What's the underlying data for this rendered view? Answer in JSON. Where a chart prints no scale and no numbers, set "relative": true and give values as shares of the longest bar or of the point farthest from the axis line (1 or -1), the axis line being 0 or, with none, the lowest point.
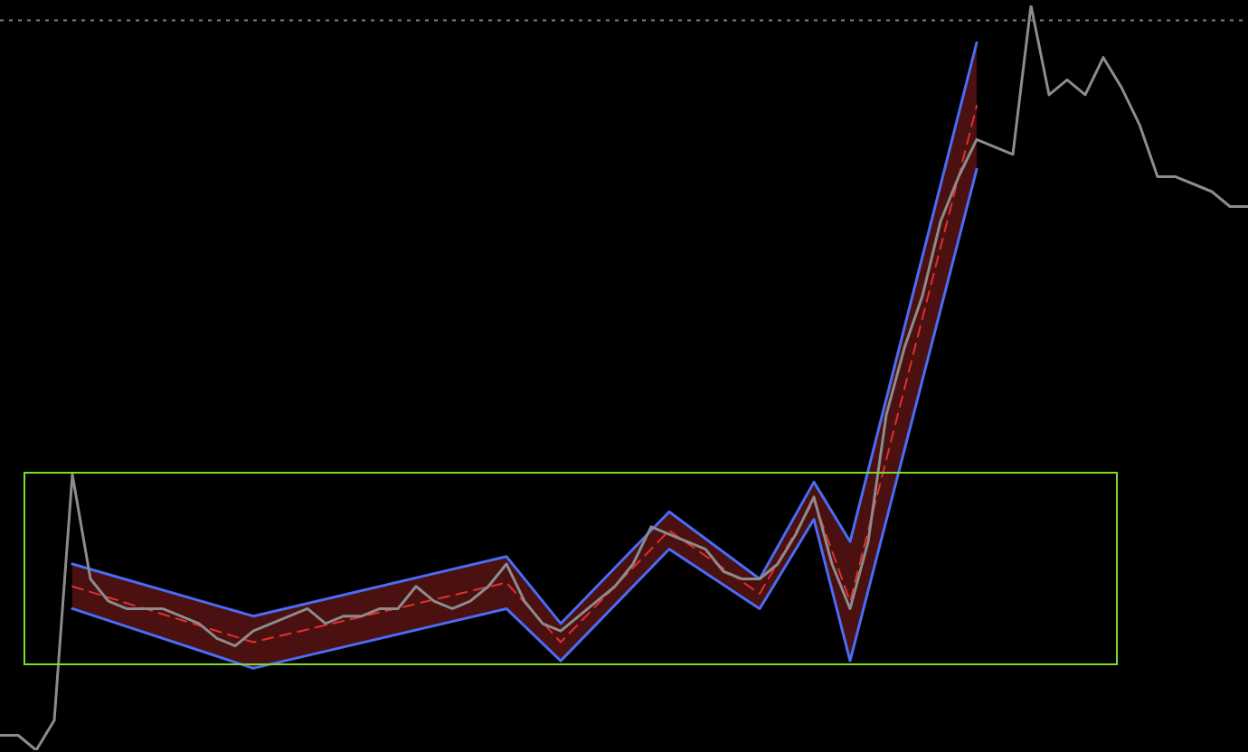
{
  "chart_data": {
    "type": "line",
    "relative": true,
    "tick_labels": false,
    "categories": [
      null,
      null,
      null,
      null,
      null,
      null,
      null,
      null,
      null,
      null,
      null,
      null,
      null,
      null,
      null,
      null,
      null,
      null,
      null,
      null,
      null,
      null,
      null,
      null,
      null,
      null,
      null,
      null,
      null,
      null,
      null,
      null,
      null,
      null,
      null,
      null,
      null,
      null,
      null,
      null,
      null,
      null,
      null,
      null,
      null,
      null,
      null,
      null,
      null,
      null,
      null,
      null,
      null,
      null,
      null,
      null,
      null,
      null,
      null,
      null,
      null,
      null,
      null,
      null,
      null,
      null,
      null,
      null,
      null,
      null
    ],
    "series": [
      {
        "color": "#8c8c8c",
        "values": [
          0.02,
          0.02,
          0.0,
          0.04,
          0.37,
          0.23,
          0.2,
          0.19,
          0.19,
          0.19,
          0.18,
          0.17,
          0.15,
          0.14,
          0.16,
          0.17,
          0.18,
          0.19,
          0.17,
          0.18,
          0.18,
          0.19,
          0.19,
          0.22,
          0.2,
          0.19,
          0.2,
          0.22,
          0.25,
          0.2,
          0.17,
          0.16,
          0.18,
          0.2,
          0.22,
          0.25,
          0.3,
          0.29,
          0.28,
          0.27,
          0.24,
          0.23,
          0.23,
          0.25,
          0.29,
          0.34,
          0.25,
          0.19,
          0.28,
          0.45,
          0.54,
          0.61,
          0.71,
          0.77,
          0.82,
          0.81,
          0.8,
          1.0,
          0.88,
          0.9,
          0.88,
          0.93,
          0.89,
          0.84,
          0.77,
          0.77,
          0.76,
          0.75,
          0.73,
          0.73
        ]
      },
      {
        "color": "#4a6cf7",
        "values": [
          null,
          null,
          null,
          null,
          0.25,
          null,
          null,
          null,
          null,
          null,
          null,
          null,
          null,
          null,
          0.18,
          null,
          null,
          null,
          null,
          null,
          null,
          null,
          null,
          null,
          null,
          null,
          null,
          null,
          0.26,
          null,
          null,
          0.17,
          null,
          null,
          null,
          null,
          null,
          0.32,
          null,
          null,
          null,
          null,
          0.23,
          null,
          null,
          0.36,
          null,
          0.28,
          null,
          null,
          null,
          null,
          null,
          null,
          0.95,
          null,
          null,
          null,
          null,
          null,
          null,
          null,
          null,
          null,
          null,
          null,
          null,
          null,
          null,
          null
        ]
      },
      {
        "color": "#4a6cf7",
        "values": [
          null,
          null,
          null,
          null,
          0.19,
          null,
          null,
          null,
          null,
          null,
          null,
          null,
          null,
          null,
          0.11,
          null,
          null,
          null,
          null,
          null,
          null,
          null,
          null,
          null,
          null,
          null,
          null,
          null,
          0.19,
          null,
          null,
          0.12,
          null,
          null,
          null,
          null,
          null,
          0.27,
          null,
          null,
          null,
          null,
          0.19,
          null,
          null,
          0.31,
          null,
          0.12,
          null,
          null,
          null,
          null,
          null,
          null,
          0.78,
          null,
          null,
          null,
          null,
          null,
          null,
          null,
          null,
          null,
          null,
          null,
          null,
          null,
          null,
          null
        ]
      },
      {
        "color": "#e03030",
        "line_style": "dashed",
        "values": [
          null,
          null,
          null,
          null,
          0.22,
          null,
          null,
          null,
          null,
          null,
          null,
          null,
          null,
          null,
          0.145,
          null,
          null,
          null,
          null,
          null,
          null,
          null,
          null,
          null,
          null,
          null,
          null,
          null,
          0.225,
          null,
          null,
          0.145,
          null,
          null,
          null,
          null,
          null,
          0.295,
          null,
          null,
          null,
          null,
          0.21,
          null,
          null,
          0.335,
          null,
          0.2,
          null,
          null,
          null,
          null,
          null,
          null,
          0.865,
          null,
          null,
          null,
          null,
          null,
          null,
          null,
          null,
          null,
          null,
          null,
          null,
          null,
          null,
          null
        ],
        "lower": [
          null,
          null,
          null,
          null,
          0.19,
          null,
          null,
          null,
          null,
          null,
          null,
          null,
          null,
          null,
          0.11,
          null,
          null,
          null,
          null,
          null,
          null,
          null,
          null,
          null,
          null,
          null,
          null,
          null,
          0.19,
          null,
          null,
          0.12,
          null,
          null,
          null,
          null,
          null,
          0.27,
          null,
          null,
          null,
          null,
          0.19,
          null,
          null,
          0.31,
          null,
          0.12,
          null,
          null,
          null,
          null,
          null,
          null,
          0.78,
          null,
          null,
          null,
          null,
          null,
          null,
          null,
          null,
          null,
          null,
          null,
          null,
          null,
          null,
          null
        ],
        "upper": [
          null,
          null,
          null,
          null,
          0.25,
          null,
          null,
          null,
          null,
          null,
          null,
          null,
          null,
          null,
          0.18,
          null,
          null,
          null,
          null,
          null,
          null,
          null,
          null,
          null,
          null,
          null,
          null,
          null,
          0.26,
          null,
          null,
          0.17,
          null,
          null,
          null,
          null,
          null,
          0.32,
          null,
          null,
          null,
          null,
          0.23,
          null,
          null,
          0.36,
          null,
          0.28,
          null,
          null,
          null,
          null,
          null,
          null,
          0.95,
          null,
          null,
          null,
          null,
          null,
          null,
          null,
          null,
          null,
          null,
          null,
          null,
          null,
          null,
          null
        ]
      }
    ],
    "ref_lines": [
      {
        "axis": "y",
        "value": 0.98,
        "color": "#808080",
        "line_style": "dotted"
      }
    ]
  }
}
